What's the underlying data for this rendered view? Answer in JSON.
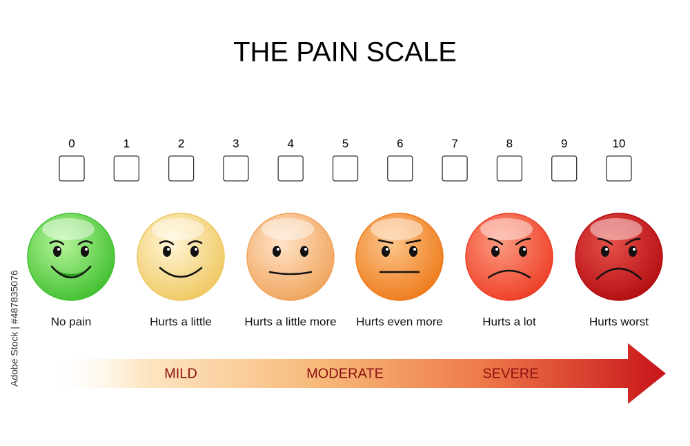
{
  "title": "THE PAIN SCALE",
  "scale": [
    0,
    1,
    2,
    3,
    4,
    5,
    6,
    7,
    8,
    9,
    10
  ],
  "faces": [
    {
      "label": "No pain"
    },
    {
      "label": "Hurts a little"
    },
    {
      "label": "Hurts a little more"
    },
    {
      "label": "Hurts even more"
    },
    {
      "label": "Hurts a lot"
    },
    {
      "label": "Hurts worst"
    }
  ],
  "severity": [
    "MILD",
    "MODERATE",
    "SEVERE"
  ],
  "watermark": "Adobe Stock | #487835076"
}
